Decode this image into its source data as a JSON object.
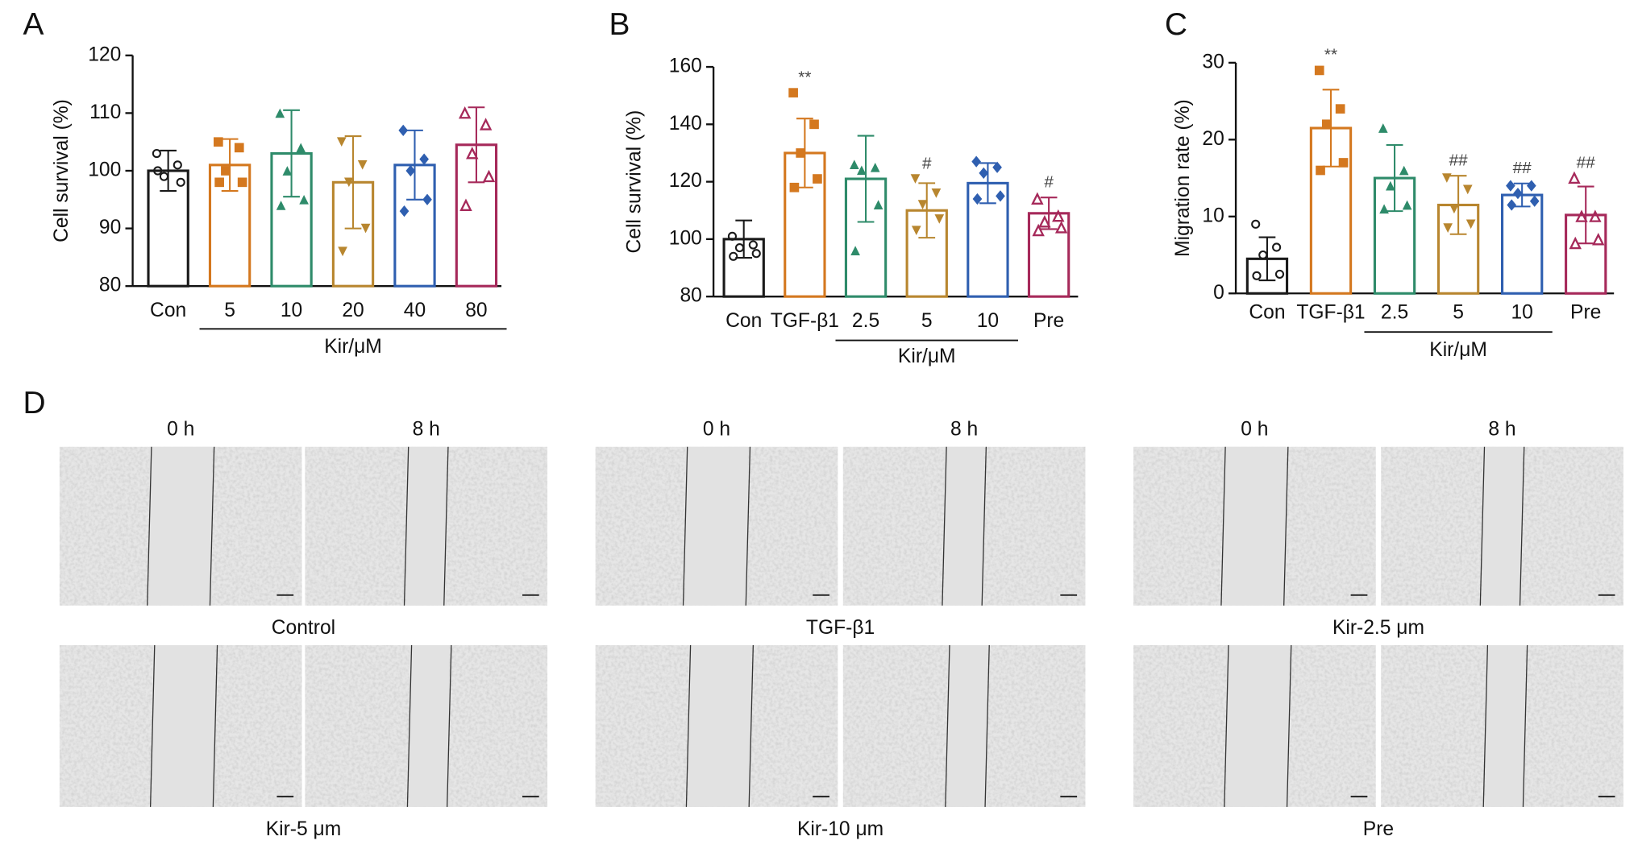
{
  "chart_data": [
    {
      "type": "bar",
      "panel": "A",
      "ylabel": "Cell survival (%)",
      "categories": [
        "Con",
        "5",
        "10",
        "20",
        "40",
        "80"
      ],
      "group": {
        "label": "Kir/μM",
        "members": [
          "5",
          "10",
          "20",
          "40",
          "80"
        ]
      },
      "values": [
        100,
        101,
        103,
        98,
        101,
        104.5
      ],
      "errors": [
        3.5,
        4.5,
        7.5,
        8,
        6,
        6.5
      ],
      "points": [
        [
          103,
          101,
          99,
          98,
          100
        ],
        [
          105,
          104,
          100,
          98,
          98
        ],
        [
          110,
          104,
          100,
          95,
          94
        ],
        [
          105,
          101,
          98,
          90,
          86
        ],
        [
          107,
          102,
          100,
          95,
          93
        ],
        [
          110,
          108,
          103,
          99,
          94
        ]
      ],
      "colors": [
        "#1a1a1a",
        "#d4781f",
        "#2e8b6a",
        "#b8862f",
        "#2f5fb0",
        "#a6295a"
      ],
      "markers": [
        "circle",
        "square",
        "triangle",
        "triangle-down",
        "diamond",
        "triangle-open"
      ],
      "ylim": [
        80,
        120
      ],
      "yticks": [
        80,
        90,
        100,
        110,
        120
      ]
    },
    {
      "type": "bar",
      "panel": "B",
      "ylabel": "Cell survival (%)",
      "categories": [
        "Con",
        "TGF-β1",
        "2.5",
        "5",
        "10",
        "Pre"
      ],
      "group": {
        "label": "Kir/μM",
        "members": [
          "2.5",
          "5",
          "10"
        ]
      },
      "values": [
        100,
        130,
        121,
        110,
        119.5,
        109
      ],
      "errors": [
        6.5,
        12,
        15,
        9.5,
        7,
        5.5
      ],
      "annotations": [
        null,
        "**",
        null,
        "#",
        null,
        "#"
      ],
      "points": [
        [
          101,
          98,
          97,
          95,
          94
        ],
        [
          151,
          140,
          130,
          121,
          118
        ],
        [
          126,
          125,
          124,
          112,
          96
        ],
        [
          121,
          116,
          112,
          107,
          103
        ],
        [
          127,
          125,
          123,
          115,
          114
        ],
        [
          114,
          108,
          106,
          104,
          103
        ]
      ],
      "colors": [
        "#1a1a1a",
        "#d4781f",
        "#2e8b6a",
        "#b8862f",
        "#2f5fb0",
        "#a6295a"
      ],
      "markers": [
        "circle",
        "square",
        "triangle",
        "triangle-down",
        "diamond",
        "triangle-open"
      ],
      "ylim": [
        80,
        160
      ],
      "yticks": [
        80,
        100,
        120,
        140,
        160
      ]
    },
    {
      "type": "bar",
      "panel": "C",
      "ylabel": "Migration rate (%)",
      "categories": [
        "Con",
        "TGF-β1",
        "2.5",
        "5",
        "10",
        "Pre"
      ],
      "group": {
        "label": "Kir/μM",
        "members": [
          "2.5",
          "5",
          "10"
        ]
      },
      "values": [
        4.5,
        21.5,
        15,
        11.5,
        12.8,
        10.2
      ],
      "errors": [
        2.8,
        5,
        4.3,
        3.8,
        1.5,
        3.7
      ],
      "annotations": [
        null,
        "**",
        null,
        "##",
        "##",
        "##"
      ],
      "points": [
        [
          9,
          6,
          5,
          2.5,
          2.3
        ],
        [
          29,
          24,
          22,
          17,
          16
        ],
        [
          21.5,
          16,
          14,
          11.5,
          11
        ],
        [
          15,
          13.5,
          11,
          9,
          8.5
        ],
        [
          14,
          14,
          13,
          12,
          11.5
        ],
        [
          15,
          10,
          10,
          7,
          6.5
        ]
      ],
      "colors": [
        "#1a1a1a",
        "#d4781f",
        "#2e8b6a",
        "#b8862f",
        "#2f5fb0",
        "#a6295a"
      ],
      "markers": [
        "circle",
        "square",
        "triangle",
        "triangle-down",
        "diamond",
        "triangle-open"
      ],
      "ylim": [
        0,
        30
      ],
      "yticks": [
        0,
        10,
        20,
        30
      ]
    }
  ],
  "panel_d": {
    "panel": "D",
    "time_labels": [
      "0 h",
      "8 h"
    ],
    "groups": [
      "Control",
      "TGF-β1",
      "Kir-2.5 μm",
      "Kir-5 μm",
      "Kir-10 μm",
      "Pre"
    ]
  }
}
